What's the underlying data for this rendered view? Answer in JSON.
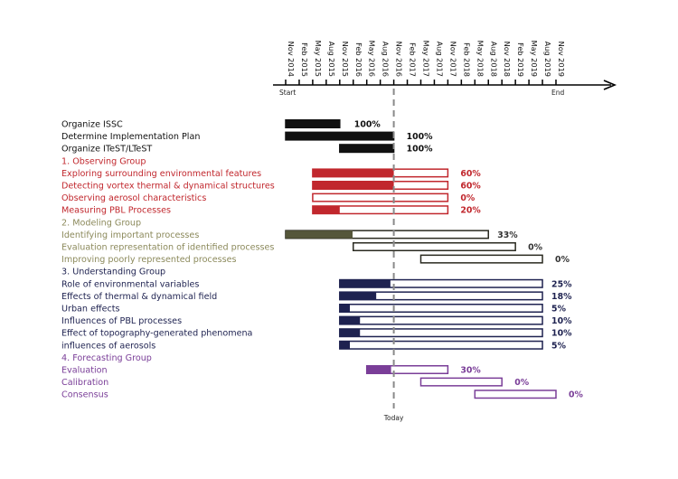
{
  "chart_data": {
    "type": "gantt",
    "timeline": [
      "Nov 2014",
      "Feb 2015",
      "May 2015",
      "Aug 2015",
      "Nov 2015",
      "Feb 2016",
      "May 2016",
      "Aug 2016",
      "Nov 2016",
      "Feb 2017",
      "May 2017",
      "Aug 2017",
      "Nov 2017",
      "Feb 2018",
      "May 2018",
      "Aug 2018",
      "Nov 2018",
      "Feb 2019",
      "May 2019",
      "Aug 2019",
      "Nov 2019"
    ],
    "start_label": "Start",
    "end_label": "End",
    "today_label": "Today",
    "today": "Nov 2016",
    "colors": {
      "general": "#111111",
      "observing": "#c1272d",
      "modeling": "#8c8a5c",
      "modeling_fill": "#55563a",
      "understanding": "#1e2250",
      "forecasting": "#7a3e98"
    },
    "rows": [
      {
        "label": "Organize ISSC",
        "group": "general",
        "start": "Nov 2014",
        "end": "Nov 2015",
        "percent": "100%",
        "progress": 100
      },
      {
        "label": "Determine Implementation Plan",
        "group": "general",
        "start": "Nov 2014",
        "end": "Nov 2016",
        "percent": "100%",
        "progress": 100
      },
      {
        "label": "Organize ITeST/LTeST",
        "group": "general",
        "start": "Nov 2015",
        "end": "Nov 2016",
        "percent": "100%",
        "progress": 100
      },
      {
        "label": "1. Observing Group",
        "group": "observing",
        "header": true
      },
      {
        "label": "Exploring surrounding environmental features",
        "group": "observing",
        "start": "May 2015",
        "end": "Nov 2017",
        "percent": "60%",
        "progress": 60
      },
      {
        "label": "Detecting vortex thermal & dynamical structures",
        "group": "observing",
        "start": "May 2015",
        "end": "Nov 2017",
        "percent": "60%",
        "progress": 60
      },
      {
        "label": "Observing aerosol characteristics",
        "group": "observing",
        "start": "May 2015",
        "end": "Nov 2017",
        "percent": "0%",
        "progress": 0
      },
      {
        "label": "Measuring PBL Processes",
        "group": "observing",
        "start": "May 2015",
        "end": "Nov 2017",
        "percent": "20%",
        "progress": 20
      },
      {
        "label": "2. Modeling Group",
        "group": "modeling",
        "header": true
      },
      {
        "label": "Identifying important processes",
        "group": "modeling",
        "start": "Nov 2014",
        "end": "Aug 2018",
        "percent": "33%",
        "progress": 33
      },
      {
        "label": "Evaluation representation of identified processes",
        "group": "modeling",
        "start": "Feb 2016",
        "end": "Feb 2019",
        "percent": "0%",
        "progress": 0
      },
      {
        "label": "Improving poorly represented processes",
        "group": "modeling",
        "start": "May 2017",
        "end": "Aug 2019",
        "percent": "0%",
        "progress": 0
      },
      {
        "label": "3. Understanding Group",
        "group": "understanding",
        "header": true
      },
      {
        "label": "Role of environmental variables",
        "group": "understanding",
        "start": "Nov 2015",
        "end": "Aug 2019",
        "percent": "25%",
        "progress": 25
      },
      {
        "label": "Effects of thermal & dynamical field",
        "group": "understanding",
        "start": "Nov 2015",
        "end": "Aug 2019",
        "percent": "18%",
        "progress": 18
      },
      {
        "label": "Urban effects",
        "group": "understanding",
        "start": "Nov 2015",
        "end": "Aug 2019",
        "percent": "5%",
        "progress": 5
      },
      {
        "label": "Influences of PBL processes",
        "group": "understanding",
        "start": "Nov 2015",
        "end": "Aug 2019",
        "percent": "10%",
        "progress": 10
      },
      {
        "label": "Effect of topography-generated phenomena",
        "group": "understanding",
        "start": "Nov 2015",
        "end": "Aug 2019",
        "percent": "10%",
        "progress": 10
      },
      {
        "label": "influences of aerosols",
        "group": "understanding",
        "start": "Nov 2015",
        "end": "Aug 2019",
        "percent": "5%",
        "progress": 5
      },
      {
        "label": "4. Forecasting Group",
        "group": "forecasting",
        "header": true
      },
      {
        "label": "Evaluation",
        "group": "forecasting",
        "start": "May 2016",
        "end": "Nov 2017",
        "percent": "30%",
        "progress": 30
      },
      {
        "label": "Calibration",
        "group": "forecasting",
        "start": "May 2017",
        "end": "Nov 2018",
        "percent": "0%",
        "progress": 0
      },
      {
        "label": "Consensus",
        "group": "forecasting",
        "start": "May 2018",
        "end": "Nov 2019",
        "percent": "0%",
        "progress": 0
      }
    ]
  }
}
